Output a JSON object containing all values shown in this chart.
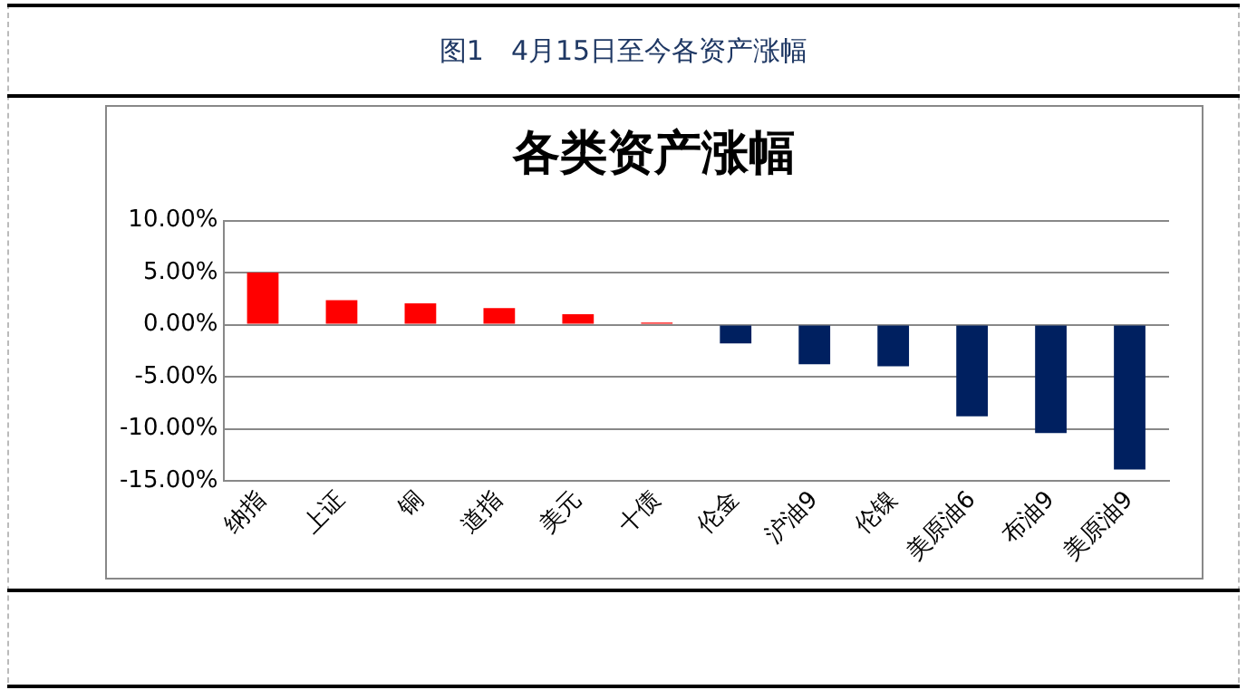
{
  "chart_data": {
    "type": "bar",
    "subtitle": "图1　4月15日至今各资产涨幅",
    "title": "各类资产涨幅",
    "categories": [
      "纳指",
      "上证",
      "铜",
      "道指",
      "美元",
      "十债",
      "伦金",
      "沪油9",
      "伦镍",
      "美原油6",
      "布油9",
      "美原油9"
    ],
    "values": [
      5.0,
      2.35,
      2.05,
      1.6,
      1.0,
      0.2,
      -1.8,
      -3.8,
      -4.0,
      -8.8,
      -10.4,
      -13.9
    ],
    "colors": [
      "#ff0000",
      "#ff0000",
      "#ff0000",
      "#ff0000",
      "#ff0000",
      "#ff0000",
      "#002060",
      "#002060",
      "#002060",
      "#002060",
      "#002060",
      "#002060"
    ],
    "ylim": [
      -15,
      10
    ],
    "yticks": [
      {
        "value": -15,
        "label": "-15.00%"
      },
      {
        "value": -10,
        "label": "-10.00%"
      },
      {
        "value": -5,
        "label": "-5.00%"
      },
      {
        "value": 0,
        "label": "0.00%"
      },
      {
        "value": 5,
        "label": "5.00%"
      },
      {
        "value": 10,
        "label": "10.00%"
      }
    ],
    "grid": "y",
    "legend": false
  }
}
